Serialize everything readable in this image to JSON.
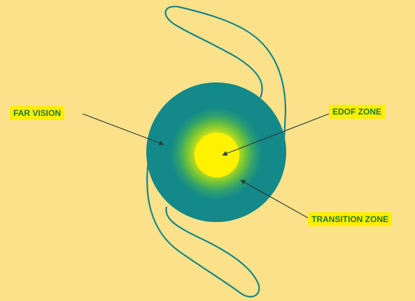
{
  "labels": {
    "far_vision": "FAR VISION",
    "edof_zone": "EDOF ZONE",
    "transition_zone": "TRANSITION ZONE"
  },
  "colors": {
    "background": "#fbe28a",
    "optic_outer": "#13898a",
    "transition": "#8fd02a",
    "edof_center": "#fff200",
    "haptic_stroke": "#15858a",
    "label_bg": "#ffee00",
    "label_text": "#1a7a3a",
    "arrow": "#2f3a3a"
  }
}
